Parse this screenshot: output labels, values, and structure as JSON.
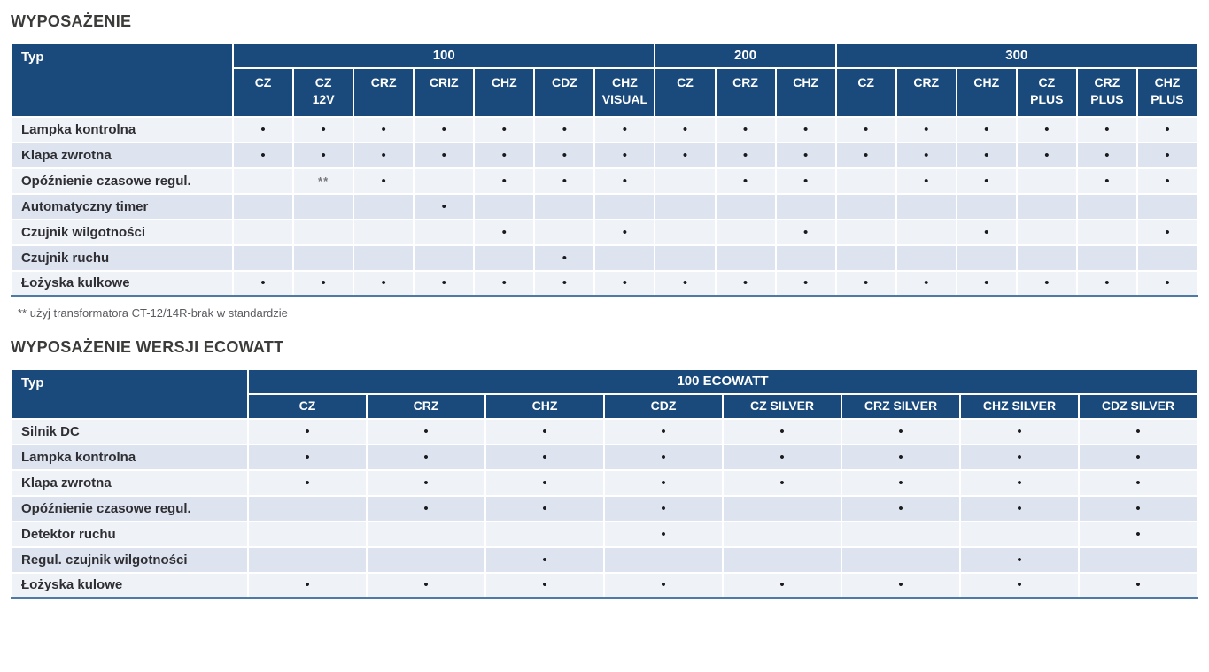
{
  "colors": {
    "header_bg": "#1A4A7B",
    "header_text": "#FFFFFF",
    "row_light": "#EFF2F7",
    "row_dark": "#DEE4EF",
    "table_bottom": "#4E7BA6",
    "title_text": "#3B3B3A",
    "body_text": "#2E2E33",
    "dot": "#1B1B1E",
    "muted": "#77777C",
    "footnote_text": "#5A5B60"
  },
  "tables": [
    {
      "name": "equipment-table",
      "title": "WYPOSAŻENIE",
      "corner_label": "Typ",
      "groups": [
        {
          "label": "100",
          "span": 7
        },
        {
          "label": "200",
          "span": 3
        },
        {
          "label": "300",
          "span": 6
        }
      ],
      "columns": [
        "CZ",
        "CZ\n12V",
        "CRZ",
        "CRIZ",
        "CHZ",
        "CDZ",
        "CHZ\nVISUAL",
        "CZ",
        "CRZ",
        "CHZ",
        "CZ",
        "CRZ",
        "CHZ",
        "CZ\nPLUS",
        "CRZ\nPLUS",
        "CHZ\nPLUS"
      ],
      "rows": [
        {
          "label": "Lampka kontrolna",
          "cells": [
            "•",
            "•",
            "•",
            "•",
            "•",
            "•",
            "•",
            "•",
            "•",
            "•",
            "•",
            "•",
            "•",
            "•",
            "•",
            "•"
          ]
        },
        {
          "label": "Klapa zwrotna",
          "cells": [
            "•",
            "•",
            "•",
            "•",
            "•",
            "•",
            "•",
            "•",
            "•",
            "•",
            "•",
            "•",
            "•",
            "•",
            "•",
            "•"
          ]
        },
        {
          "label": "Opóźnienie czasowe regul.",
          "cells": [
            "",
            "**",
            "•",
            "",
            "•",
            "•",
            "•",
            "",
            "•",
            "•",
            "",
            "•",
            "•",
            "",
            "•",
            "•"
          ]
        },
        {
          "label": "Automatyczny timer",
          "cells": [
            "",
            "",
            "",
            "•",
            "",
            "",
            "",
            "",
            "",
            "",
            "",
            "",
            "",
            "",
            "",
            ""
          ]
        },
        {
          "label": "Czujnik wilgotności",
          "cells": [
            "",
            "",
            "",
            "",
            "•",
            "",
            "•",
            "",
            "",
            "•",
            "",
            "",
            "•",
            "",
            "",
            "•"
          ]
        },
        {
          "label": "Czujnik ruchu",
          "cells": [
            "",
            "",
            "",
            "",
            "",
            "•",
            "",
            "",
            "",
            "",
            "",
            "",
            "",
            "",
            "",
            ""
          ]
        },
        {
          "label": "Łożyska kulkowe",
          "cells": [
            "•",
            "•",
            "•",
            "•",
            "•",
            "•",
            "•",
            "•",
            "•",
            "•",
            "•",
            "•",
            "•",
            "•",
            "•",
            "•"
          ]
        }
      ],
      "footnote": "** użyj transformatora CT-12/14R-brak w standardzie"
    },
    {
      "name": "ecowatt-equipment-table",
      "title": "WYPOSAŻENIE WERSJI ECOWATT",
      "corner_label": "Typ",
      "groups": [
        {
          "label": "100 ECOWATT",
          "span": 8
        }
      ],
      "columns": [
        "CZ",
        "CRZ",
        "CHZ",
        "CDZ",
        "CZ SILVER",
        "CRZ SILVER",
        "CHZ SILVER",
        "CDZ SILVER"
      ],
      "rows": [
        {
          "label": "Silnik DC",
          "cells": [
            "•",
            "•",
            "•",
            "•",
            "•",
            "•",
            "•",
            "•"
          ]
        },
        {
          "label": "Lampka kontrolna",
          "cells": [
            "•",
            "•",
            "•",
            "•",
            "•",
            "•",
            "•",
            "•"
          ]
        },
        {
          "label": "Klapa zwrotna",
          "cells": [
            "•",
            "•",
            "•",
            "•",
            "•",
            "•",
            "•",
            "•"
          ]
        },
        {
          "label": "Opóźnienie czasowe regul.",
          "cells": [
            "",
            "•",
            "•",
            "•",
            "",
            "•",
            "•",
            "•"
          ]
        },
        {
          "label": "Detektor ruchu",
          "cells": [
            "",
            "",
            "",
            "•",
            "",
            "",
            "",
            "•"
          ]
        },
        {
          "label": "Regul. czujnik wilgotności",
          "cells": [
            "",
            "",
            "•",
            "",
            "",
            "",
            "•",
            ""
          ]
        },
        {
          "label": "Łożyska kulowe",
          "cells": [
            "•",
            "•",
            "•",
            "•",
            "•",
            "•",
            "•",
            "•"
          ]
        }
      ],
      "footnote": ""
    }
  ]
}
